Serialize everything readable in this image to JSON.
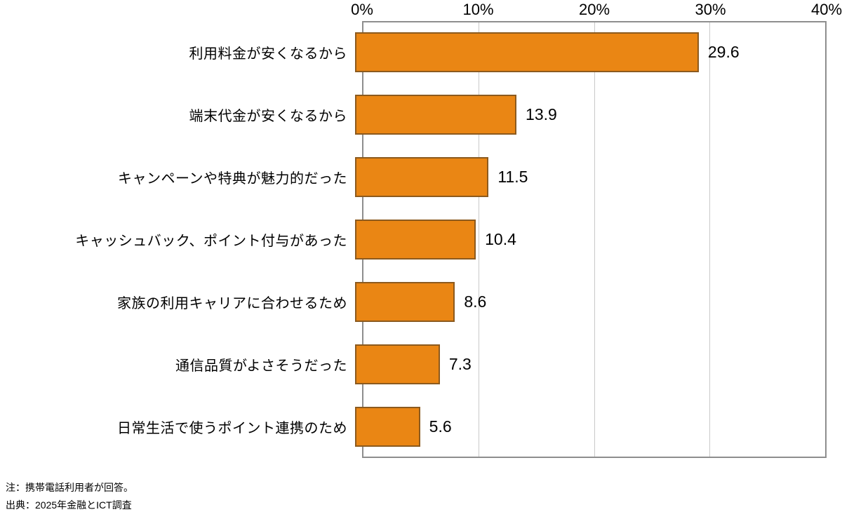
{
  "chart_data": {
    "type": "bar",
    "orientation": "horizontal",
    "title": "",
    "xlabel": "",
    "ylabel": "",
    "xlim": [
      0,
      40
    ],
    "x_ticks": [
      "0%",
      "10%",
      "20%",
      "30%",
      "40%"
    ],
    "grid": "vertical-gridlines-at-10-20-30",
    "legend": "none",
    "categories": [
      "利用料金が安くなるから",
      "端末代金が安くなるから",
      "キャンペーンや特典が魅力的だった",
      "キャッシュバック、ポイント付与があった",
      "家族の利用キャリアに合わせるため",
      "通信品質がよさそうだった",
      "日常生活で使うポイント連携のため"
    ],
    "values": [
      29.6,
      13.9,
      11.5,
      10.4,
      8.6,
      7.3,
      5.6
    ],
    "value_labels": [
      "29.6",
      "13.9",
      "11.5",
      "10.4",
      "8.6",
      "7.3",
      "5.6"
    ],
    "colors": {
      "bar_fill": "#ea8614",
      "bar_border": "#8c5a1e",
      "axis_border": "#8e8e8e",
      "gridline": "#c9c9c9",
      "text": "#000000"
    }
  },
  "notes": {
    "line1": "注：携帯電話利用者が回答。",
    "line2": "出典：2025年金融とICT調査"
  }
}
